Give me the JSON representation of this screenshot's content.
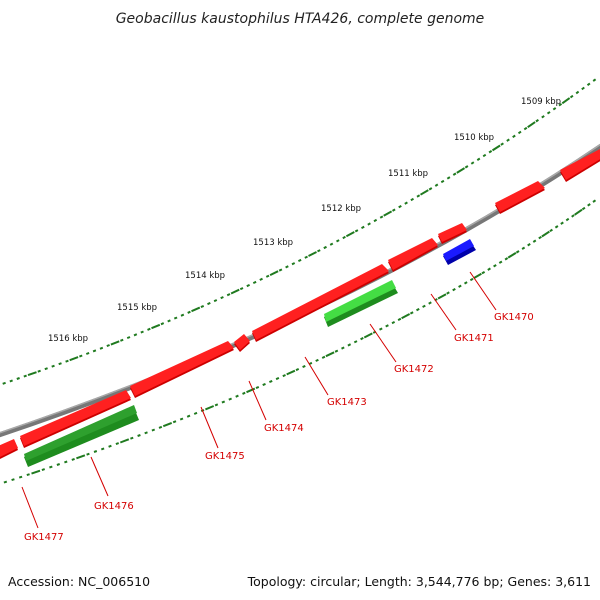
{
  "header": {
    "title": "Geobacillus kaustophilus HTA426, complete genome"
  },
  "footer": {
    "accession": "Accession: NC_006510",
    "summary": "Topology: circular; Length: 3,544,776 bp; Genes: 3,611"
  },
  "colors": {
    "forward_gene": "#ff0000",
    "reverse_gene_light": "#33cc33",
    "reverse_gene_dark": "#1e8c1e",
    "rna_gene": "#0000ee",
    "backbone": "#777777",
    "tick": "#1f7a1f",
    "label": "#d40000"
  },
  "ruler": {
    "labels": [
      "1509 kbp",
      "1510 kbp",
      "1511 kbp",
      "1512 kbp",
      "1513 kbp",
      "1514 kbp",
      "1515 kbp",
      "1516 kbp"
    ]
  },
  "gene_labels": [
    "GK1470",
    "GK1471",
    "GK1472",
    "GK1473",
    "GK1474",
    "GK1475",
    "GK1476",
    "GK1477"
  ]
}
